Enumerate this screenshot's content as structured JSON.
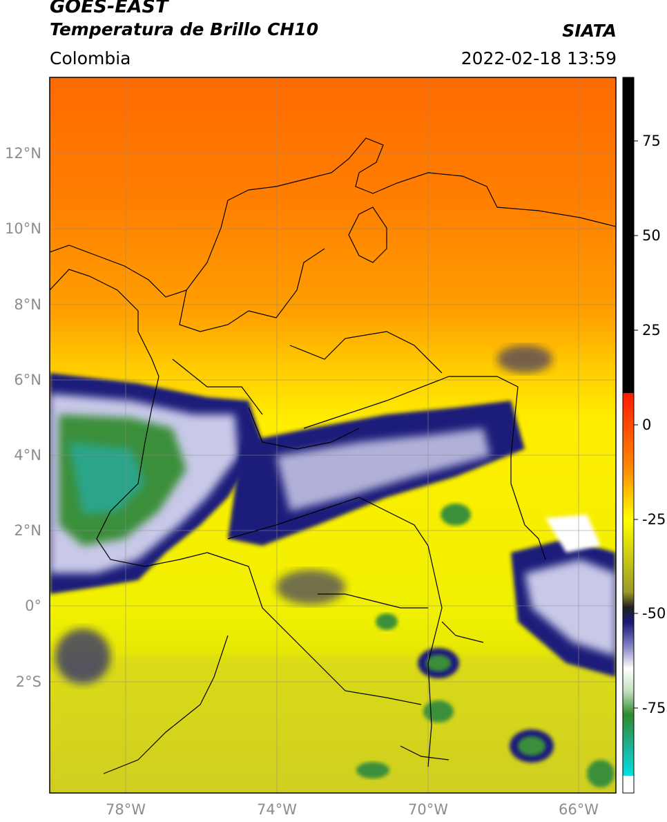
{
  "header": {
    "satellite": "GOES-EAST",
    "product": "Temperatura de Brillo CH10",
    "brand": "SIATA",
    "region": "Colombia",
    "datetime": "2022-02-18 13:59"
  },
  "map": {
    "lat_ticks": [
      "12°N",
      "10°N",
      "8°N",
      "6°N",
      "4°N",
      "2°N",
      "0°",
      "2°S"
    ],
    "lon_ticks": [
      "78°W",
      "74°W",
      "70°W",
      "66°W"
    ],
    "lon_range": [
      -80,
      -65
    ],
    "lat_range": [
      -5,
      14
    ]
  },
  "colorbar": {
    "ticks": [
      "75",
      "50",
      "25",
      "0",
      "-25",
      "-50",
      "-75"
    ],
    "colors": {
      "hot": "#000000",
      "red": "#ff1a00",
      "orange": "#ff8c00",
      "yellow": "#ffff00",
      "olive": "#9a9a2a",
      "navy": "#1a1a7a",
      "white": "#ffffff",
      "green": "#2e8b2e",
      "cyan": "#00e0e0"
    }
  }
}
